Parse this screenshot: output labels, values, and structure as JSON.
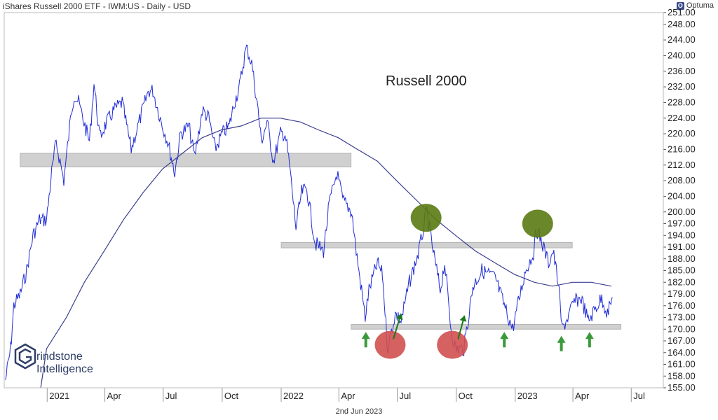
{
  "header": {
    "title": "iShares Russell 2000 ETF - IWM:US - Daily - USD",
    "brand": "Optuma",
    "brand_icon": "optuma-logo-icon"
  },
  "footer": {
    "date": "2nd Jun 2023"
  },
  "watermark": {
    "line1": "rindstone",
    "line2": "Intelligence",
    "icon": "grindstone-g-logo-icon"
  },
  "chart_data": {
    "type": "line",
    "title": "Russell 2000",
    "annotation": "Russell 2000",
    "x_range": [
      "2020-10-26",
      "2023-08-20"
    ],
    "ylim": [
      155,
      251
    ],
    "y_ticks": [
      155,
      158,
      161,
      164,
      167,
      170,
      173,
      176,
      179,
      182,
      185,
      188,
      191,
      194,
      197,
      200,
      204,
      208,
      212,
      216,
      220,
      224,
      228,
      232,
      236,
      240,
      244,
      248,
      251
    ],
    "y_tick_labels": [
      "155.00",
      "158.00",
      "161.00",
      "164.00",
      "167.00",
      "170.00",
      "173.00",
      "176.00",
      "179.00",
      "182.00",
      "185.00",
      "188.00",
      "191.00",
      "194.00",
      "197.00",
      "200.00",
      "204.00",
      "208.00",
      "212.00",
      "216.00",
      "220.00",
      "224.00",
      "228.00",
      "232.00",
      "236.00",
      "240.00",
      "244.00",
      "248.00",
      "251.00"
    ],
    "x_ticks": [
      {
        "date": "2021-01-01",
        "label": "2021"
      },
      {
        "date": "2021-04-01",
        "label": "Apr"
      },
      {
        "date": "2021-07-01",
        "label": "Jul"
      },
      {
        "date": "2021-10-01",
        "label": "Oct"
      },
      {
        "date": "2022-01-01",
        "label": "2022"
      },
      {
        "date": "2022-04-01",
        "label": "Apr"
      },
      {
        "date": "2022-07-01",
        "label": "Jul"
      },
      {
        "date": "2022-10-01",
        "label": "Oct"
      },
      {
        "date": "2023-01-01",
        "label": "2023"
      },
      {
        "date": "2023-04-01",
        "label": "Apr"
      },
      {
        "date": "2023-07-01",
        "label": "Jul"
      }
    ],
    "grid": false,
    "series": [
      {
        "name": "",
        "color": "#1f2bd6",
        "points": [
          [
            "2020-10-28",
            157
          ],
          [
            "2020-11-05",
            165
          ],
          [
            "2020-11-10",
            176
          ],
          [
            "2020-11-20",
            179
          ],
          [
            "2020-11-30",
            185
          ],
          [
            "2020-12-10",
            194
          ],
          [
            "2020-12-20",
            198
          ],
          [
            "2020-12-31",
            198
          ],
          [
            "2021-01-08",
            210
          ],
          [
            "2021-01-15",
            218
          ],
          [
            "2021-01-27",
            208
          ],
          [
            "2021-02-08",
            226
          ],
          [
            "2021-02-12",
            230
          ],
          [
            "2021-02-19",
            228
          ],
          [
            "2021-03-01",
            222
          ],
          [
            "2021-03-08",
            218
          ],
          [
            "2021-03-15",
            233
          ],
          [
            "2021-03-24",
            219
          ],
          [
            "2021-04-01",
            222
          ],
          [
            "2021-04-15",
            226
          ],
          [
            "2021-04-28",
            228
          ],
          [
            "2021-05-12",
            216
          ],
          [
            "2021-05-28",
            225
          ],
          [
            "2021-06-08",
            231
          ],
          [
            "2021-06-15",
            231
          ],
          [
            "2021-06-28",
            223
          ],
          [
            "2021-07-08",
            218
          ],
          [
            "2021-07-19",
            210
          ],
          [
            "2021-07-28",
            220
          ],
          [
            "2021-08-10",
            222
          ],
          [
            "2021-08-19",
            214
          ],
          [
            "2021-08-31",
            226
          ],
          [
            "2021-09-10",
            224
          ],
          [
            "2021-09-20",
            216
          ],
          [
            "2021-10-01",
            220
          ],
          [
            "2021-10-12",
            222
          ],
          [
            "2021-10-20",
            228
          ],
          [
            "2021-10-28",
            232
          ],
          [
            "2021-11-05",
            240
          ],
          [
            "2021-11-08",
            242
          ],
          [
            "2021-11-16",
            238
          ],
          [
            "2021-11-26",
            226
          ],
          [
            "2021-12-01",
            218
          ],
          [
            "2021-12-10",
            223
          ],
          [
            "2021-12-20",
            213
          ],
          [
            "2021-12-31",
            220
          ],
          [
            "2022-01-07",
            220
          ],
          [
            "2022-01-14",
            212
          ],
          [
            "2022-01-24",
            196
          ],
          [
            "2022-02-02",
            205
          ],
          [
            "2022-02-10",
            206
          ],
          [
            "2022-02-23",
            192
          ],
          [
            "2022-03-08",
            190
          ],
          [
            "2022-03-17",
            202
          ],
          [
            "2022-03-29",
            210
          ],
          [
            "2022-04-07",
            203
          ],
          [
            "2022-04-21",
            200
          ],
          [
            "2022-04-28",
            190
          ],
          [
            "2022-05-12",
            173
          ],
          [
            "2022-05-18",
            180
          ],
          [
            "2022-05-31",
            187
          ],
          [
            "2022-06-08",
            184
          ],
          [
            "2022-06-16",
            165
          ],
          [
            "2022-06-28",
            174
          ],
          [
            "2022-07-07",
            172
          ],
          [
            "2022-07-20",
            182
          ],
          [
            "2022-08-04",
            190
          ],
          [
            "2022-08-16",
            200
          ],
          [
            "2022-08-26",
            190
          ],
          [
            "2022-09-06",
            180
          ],
          [
            "2022-09-13",
            187
          ],
          [
            "2022-09-23",
            170
          ],
          [
            "2022-09-30",
            165
          ],
          [
            "2022-10-13",
            165
          ],
          [
            "2022-10-27",
            181
          ],
          [
            "2022-11-10",
            185
          ],
          [
            "2022-11-22",
            184
          ],
          [
            "2022-12-01",
            183
          ],
          [
            "2022-12-15",
            176
          ],
          [
            "2022-12-28",
            170
          ],
          [
            "2023-01-06",
            177
          ],
          [
            "2023-01-17",
            185
          ],
          [
            "2023-01-31",
            190
          ],
          [
            "2023-02-02",
            196
          ],
          [
            "2023-02-10",
            193
          ],
          [
            "2023-02-22",
            187
          ],
          [
            "2023-03-01",
            190
          ],
          [
            "2023-03-09",
            182
          ],
          [
            "2023-03-15",
            170
          ],
          [
            "2023-03-24",
            173
          ],
          [
            "2023-04-03",
            177
          ],
          [
            "2023-04-14",
            178
          ],
          [
            "2023-04-25",
            172
          ],
          [
            "2023-05-05",
            175
          ],
          [
            "2023-05-16",
            178
          ],
          [
            "2023-05-25",
            174
          ],
          [
            "2023-06-02",
            178
          ]
        ]
      },
      {
        "name": "",
        "color": "#3b3f8f",
        "points": [
          [
            "2020-12-31",
            165
          ],
          [
            "2021-01-31",
            173
          ],
          [
            "2021-02-28",
            182
          ],
          [
            "2021-03-31",
            190
          ],
          [
            "2021-04-30",
            198
          ],
          [
            "2021-05-31",
            205
          ],
          [
            "2021-06-30",
            211
          ],
          [
            "2021-07-31",
            215
          ],
          [
            "2021-08-31",
            219
          ],
          [
            "2021-09-30",
            221
          ],
          [
            "2021-10-31",
            222
          ],
          [
            "2021-11-30",
            224
          ],
          [
            "2021-12-31",
            224
          ],
          [
            "2022-01-31",
            223
          ],
          [
            "2022-02-28",
            221
          ],
          [
            "2022-03-31",
            219
          ],
          [
            "2022-04-30",
            216
          ],
          [
            "2022-05-31",
            213
          ],
          [
            "2022-06-30",
            208
          ],
          [
            "2022-07-31",
            203
          ],
          [
            "2022-08-31",
            198
          ],
          [
            "2022-09-30",
            194
          ],
          [
            "2022-10-31",
            190
          ],
          [
            "2022-11-30",
            187
          ],
          [
            "2022-12-31",
            184
          ],
          [
            "2023-01-31",
            182
          ],
          [
            "2023-02-28",
            181
          ],
          [
            "2023-03-31",
            182
          ],
          [
            "2023-04-30",
            182
          ],
          [
            "2023-05-31",
            181
          ]
        ]
      }
    ],
    "bands": [
      {
        "x0": "2020-11-20",
        "x1": "2022-04-20",
        "y0": 211.5,
        "y1": 215,
        "color": "#d0d0d0"
      },
      {
        "x0": "2022-01-01",
        "x1": "2023-03-31",
        "y0": 190.8,
        "y1": 192.2,
        "color": "#d0d0d0"
      },
      {
        "x0": "2022-04-20",
        "x1": "2023-06-15",
        "y0": 170,
        "y1": 171.2,
        "color": "#d0d0d0"
      }
    ],
    "circles": [
      {
        "date": "2022-08-15",
        "value": 198.5,
        "color": "#5a7a12"
      },
      {
        "date": "2023-02-05",
        "value": 197,
        "color": "#5a7a12"
      },
      {
        "date": "2022-06-20",
        "value": 166,
        "color": "#d05050"
      },
      {
        "date": "2022-09-25",
        "value": 166,
        "color": "#d05050"
      }
    ],
    "up_arrows": [
      {
        "date": "2022-05-13",
        "value": 167.5
      },
      {
        "date": "2022-12-15",
        "value": 167.5
      },
      {
        "date": "2023-03-14",
        "value": 166.5
      },
      {
        "date": "2023-04-27",
        "value": 167.5
      }
    ],
    "diag_arrows": [
      {
        "date0": "2022-06-25",
        "value0": 167.5,
        "date1": "2022-07-07",
        "value1": 174
      },
      {
        "date0": "2022-10-04",
        "value0": 167.5,
        "date1": "2022-10-14",
        "value1": 173.5
      }
    ]
  }
}
